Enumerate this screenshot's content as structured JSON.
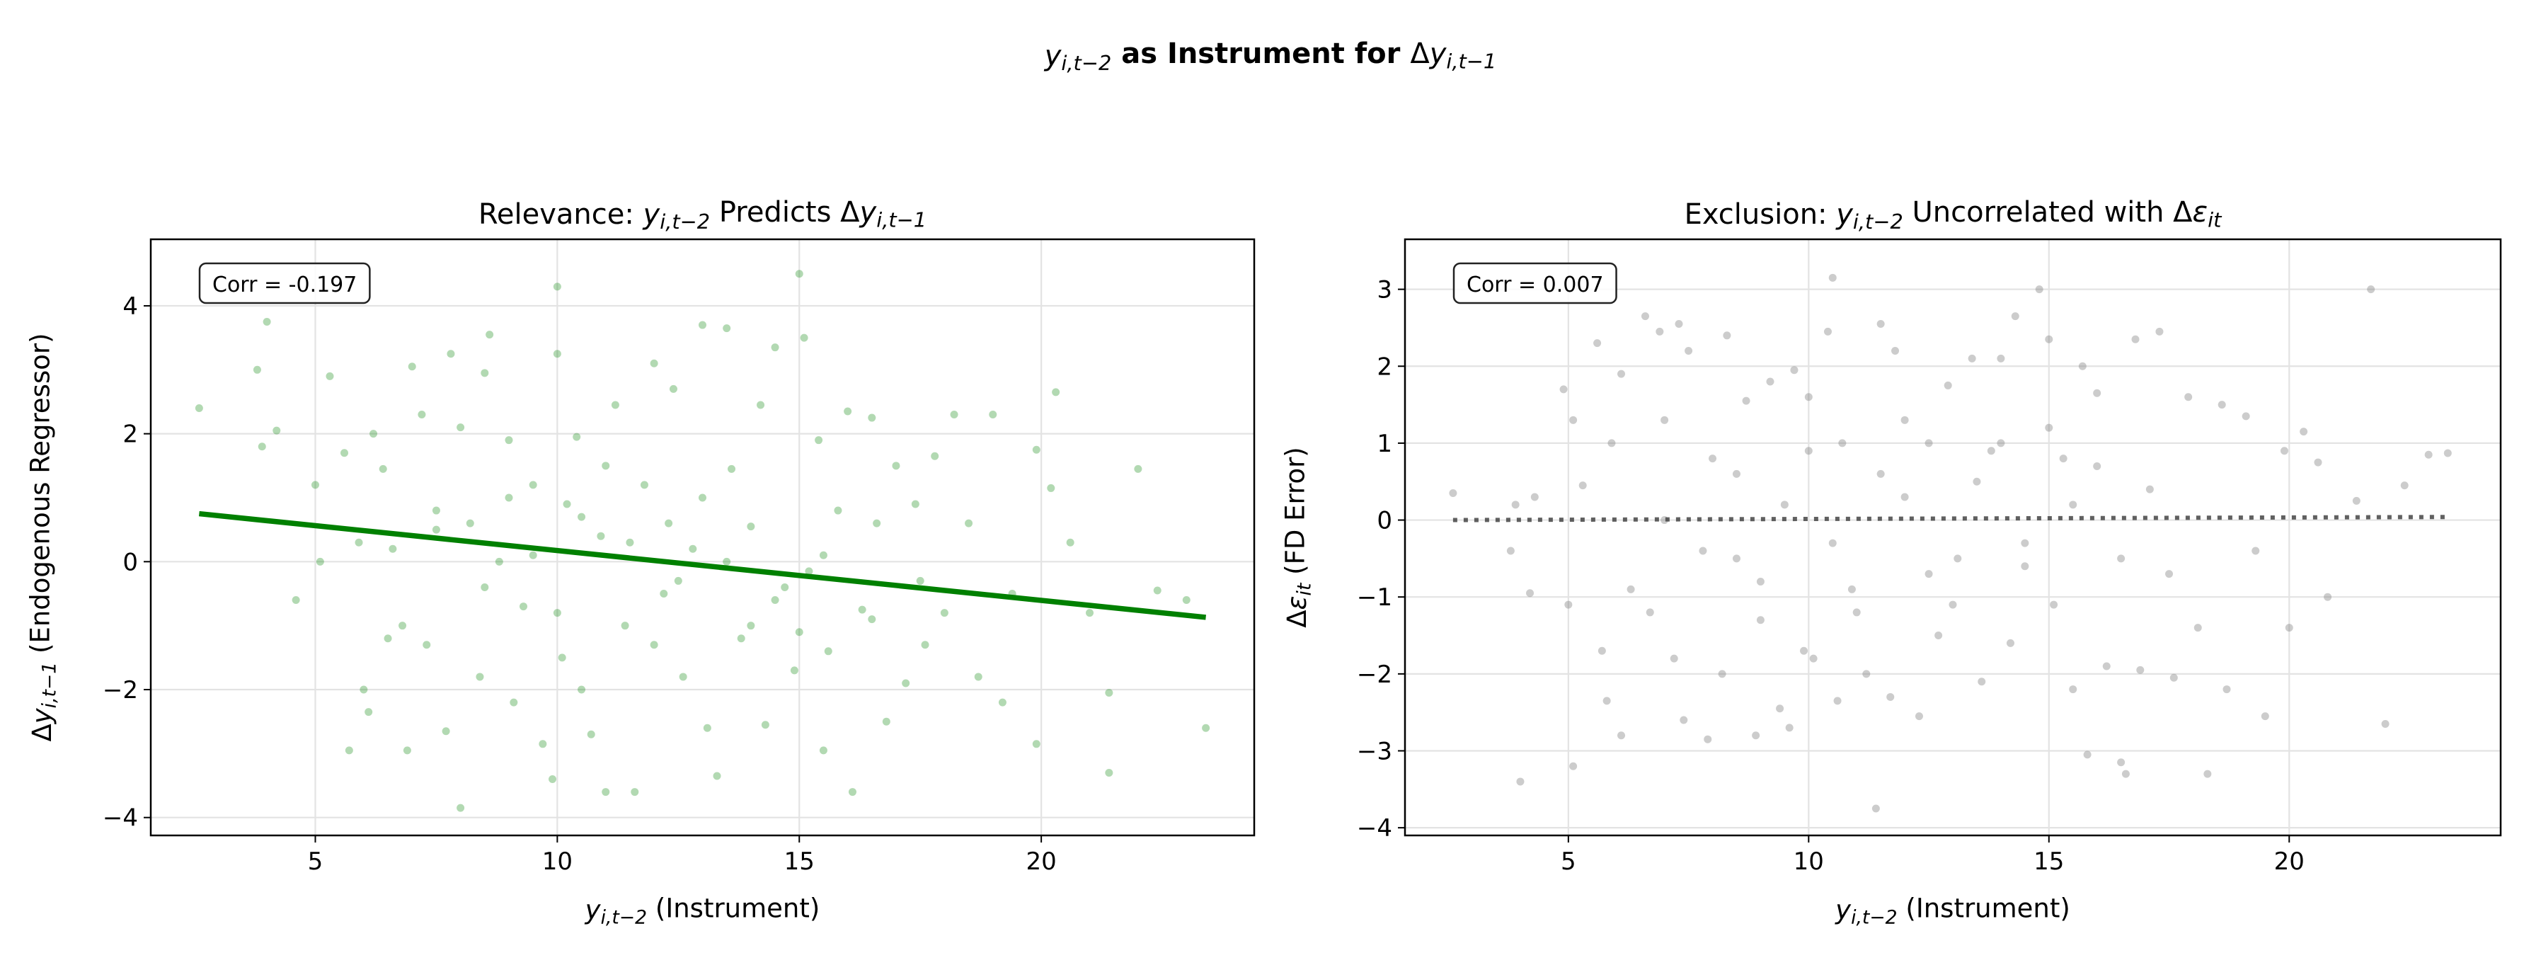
{
  "figure": {
    "suptitle": [
      {
        "t": "y",
        "s": "i"
      },
      {
        "t": "i,t−2",
        "s": "s"
      },
      {
        "t": " as Instrument for ",
        "s": "b"
      },
      {
        "t": "Δ",
        "s": "n"
      },
      {
        "t": "y",
        "s": "i"
      },
      {
        "t": "i,t−1",
        "s": "s"
      }
    ]
  },
  "chart_data": [
    {
      "type": "scatter",
      "title": [
        {
          "t": "Relevance: ",
          "s": "n"
        },
        {
          "t": "y",
          "s": "i"
        },
        {
          "t": "i,t−2",
          "s": "s"
        },
        {
          "t": " Predicts Δ",
          "s": "n"
        },
        {
          "t": "y",
          "s": "i"
        },
        {
          "t": "i,t−1",
          "s": "s"
        }
      ],
      "xlabel": [
        {
          "t": "y",
          "s": "i"
        },
        {
          "t": "i,t−2",
          "s": "s"
        },
        {
          "t": " (Instrument)",
          "s": "n"
        }
      ],
      "ylabel": [
        {
          "t": "Δ",
          "s": "n"
        },
        {
          "t": "y",
          "s": "i"
        },
        {
          "t": "i,t−1",
          "s": "s"
        },
        {
          "t": " (Endogenous Regressor)",
          "s": "n"
        }
      ],
      "annotation": "Corr = -0.197",
      "xlim": [
        1.6,
        24.4
      ],
      "ylim": [
        -4.28,
        5.04
      ],
      "xticks": [
        5,
        10,
        15,
        20
      ],
      "yticks": [
        -4,
        -2,
        0,
        2,
        4
      ],
      "ytick_labels": [
        "−4",
        "−2",
        "0",
        "2",
        "4"
      ],
      "grid": true,
      "point_color": "#008000",
      "point_alpha": 0.3,
      "fit_line": {
        "x": [
          2.6,
          23.4
        ],
        "y": [
          0.75,
          -0.87
        ],
        "color": "#008000",
        "style": "solid"
      },
      "points": [
        [
          2.6,
          2.4
        ],
        [
          3.8,
          3.0
        ],
        [
          4.0,
          3.75
        ],
        [
          3.9,
          1.8
        ],
        [
          4.2,
          2.05
        ],
        [
          4.6,
          -0.6
        ],
        [
          5.0,
          1.2
        ],
        [
          5.1,
          0.0
        ],
        [
          5.3,
          2.9
        ],
        [
          5.6,
          1.7
        ],
        [
          5.7,
          -2.95
        ],
        [
          5.9,
          0.3
        ],
        [
          6.0,
          -2.0
        ],
        [
          6.1,
          -2.35
        ],
        [
          6.2,
          2.0
        ],
        [
          6.4,
          1.45
        ],
        [
          6.6,
          0.2
        ],
        [
          6.8,
          -1.0
        ],
        [
          6.9,
          -2.95
        ],
        [
          7.0,
          3.05
        ],
        [
          7.2,
          2.3
        ],
        [
          7.3,
          -1.3
        ],
        [
          7.5,
          0.8
        ],
        [
          7.7,
          -2.65
        ],
        [
          7.8,
          3.25
        ],
        [
          8.0,
          2.1
        ],
        [
          8.0,
          -3.85
        ],
        [
          8.2,
          0.6
        ],
        [
          8.4,
          -1.8
        ],
        [
          8.5,
          2.95
        ],
        [
          8.6,
          3.55
        ],
        [
          8.8,
          0.0
        ],
        [
          9.0,
          1.9
        ],
        [
          9.1,
          -2.2
        ],
        [
          9.3,
          -0.7
        ],
        [
          9.5,
          1.2
        ],
        [
          9.7,
          -2.85
        ],
        [
          9.9,
          -3.4
        ],
        [
          10.0,
          4.3
        ],
        [
          10.0,
          3.25
        ],
        [
          10.1,
          -1.5
        ],
        [
          10.2,
          0.9
        ],
        [
          10.4,
          1.95
        ],
        [
          10.5,
          -2.0
        ],
        [
          10.7,
          -2.7
        ],
        [
          10.9,
          0.4
        ],
        [
          11.0,
          -3.6
        ],
        [
          11.2,
          2.45
        ],
        [
          11.4,
          -1.0
        ],
        [
          11.6,
          -3.6
        ],
        [
          11.8,
          1.2
        ],
        [
          12.0,
          3.1
        ],
        [
          12.2,
          -0.5
        ],
        [
          12.4,
          2.7
        ],
        [
          12.6,
          -1.8
        ],
        [
          12.8,
          0.2
        ],
        [
          13.0,
          3.7
        ],
        [
          13.1,
          -2.6
        ],
        [
          13.3,
          -3.35
        ],
        [
          13.5,
          3.65
        ],
        [
          13.6,
          1.45
        ],
        [
          13.8,
          -1.2
        ],
        [
          14.0,
          0.55
        ],
        [
          14.2,
          2.45
        ],
        [
          14.3,
          -2.55
        ],
        [
          14.5,
          3.35
        ],
        [
          14.7,
          -0.4
        ],
        [
          14.9,
          -1.7
        ],
        [
          15.0,
          4.5
        ],
        [
          15.1,
          3.5
        ],
        [
          15.2,
          -0.15
        ],
        [
          15.4,
          1.9
        ],
        [
          15.5,
          -2.95
        ],
        [
          15.6,
          -1.4
        ],
        [
          15.8,
          0.8
        ],
        [
          16.0,
          2.35
        ],
        [
          16.1,
          -3.6
        ],
        [
          16.3,
          -0.75
        ],
        [
          16.5,
          2.25
        ],
        [
          16.6,
          0.6
        ],
        [
          16.8,
          -2.5
        ],
        [
          17.0,
          1.5
        ],
        [
          17.2,
          -1.9
        ],
        [
          17.4,
          0.9
        ],
        [
          17.6,
          -1.3
        ],
        [
          17.8,
          1.65
        ],
        [
          18.0,
          -0.8
        ],
        [
          18.2,
          2.3
        ],
        [
          18.5,
          0.6
        ],
        [
          18.7,
          -1.8
        ],
        [
          19.0,
          2.3
        ],
        [
          19.2,
          -2.2
        ],
        [
          19.4,
          -0.5
        ],
        [
          19.9,
          1.75
        ],
        [
          19.9,
          -2.85
        ],
        [
          20.2,
          1.15
        ],
        [
          20.3,
          2.65
        ],
        [
          20.6,
          0.3
        ],
        [
          21.0,
          -0.8
        ],
        [
          21.4,
          -3.3
        ],
        [
          21.4,
          -2.05
        ],
        [
          22.0,
          1.45
        ],
        [
          22.4,
          -0.45
        ],
        [
          23.0,
          -0.6
        ],
        [
          23.4,
          -2.6
        ],
        [
          9.5,
          0.1
        ],
        [
          10.5,
          0.7
        ],
        [
          11.5,
          0.3
        ],
        [
          12.5,
          -0.3
        ],
        [
          13.5,
          0.0
        ],
        [
          14.5,
          -0.6
        ],
        [
          15.5,
          0.1
        ],
        [
          8.5,
          -0.4
        ],
        [
          7.5,
          0.5
        ],
        [
          16.5,
          -0.9
        ],
        [
          12.0,
          -1.3
        ],
        [
          11.0,
          1.5
        ],
        [
          14.0,
          -1.0
        ],
        [
          9.0,
          1.0
        ],
        [
          10.0,
          -0.8
        ],
        [
          13.0,
          1.0
        ],
        [
          15.0,
          -1.1
        ],
        [
          6.5,
          -1.2
        ],
        [
          17.5,
          -0.3
        ],
        [
          12.3,
          0.6
        ]
      ]
    },
    {
      "type": "scatter",
      "title": [
        {
          "t": "Exclusion: ",
          "s": "n"
        },
        {
          "t": "y",
          "s": "i"
        },
        {
          "t": "i,t−2",
          "s": "s"
        },
        {
          "t": " Uncorrelated with Δ",
          "s": "n"
        },
        {
          "t": "ε",
          "s": "i"
        },
        {
          "t": "it",
          "s": "s"
        }
      ],
      "xlabel": [
        {
          "t": "y",
          "s": "i"
        },
        {
          "t": "i,t−2",
          "s": "s"
        },
        {
          "t": " (Instrument)",
          "s": "n"
        }
      ],
      "ylabel": [
        {
          "t": "Δ",
          "s": "n"
        },
        {
          "t": "ε",
          "s": "i"
        },
        {
          "t": "it",
          "s": "s"
        },
        {
          "t": " (FD Error)",
          "s": "n"
        }
      ],
      "annotation": "Corr = 0.007",
      "xlim": [
        1.6,
        24.4
      ],
      "ylim": [
        -4.1,
        3.65
      ],
      "xticks": [
        5,
        10,
        15,
        20
      ],
      "yticks": [
        -4,
        -3,
        -2,
        -1,
        0,
        1,
        2,
        3
      ],
      "ytick_labels": [
        "−4",
        "−3",
        "−2",
        "−1",
        "0",
        "1",
        "2",
        "3"
      ],
      "grid": true,
      "point_color": "#808080",
      "point_alpha": 0.4,
      "fit_line": {
        "x": [
          2.6,
          23.3
        ],
        "y": [
          0.0,
          0.04
        ],
        "color": "#444444",
        "style": "dotted"
      },
      "points": [
        [
          2.6,
          0.35
        ],
        [
          3.8,
          -0.4
        ],
        [
          3.9,
          0.2
        ],
        [
          4.0,
          -3.4
        ],
        [
          4.2,
          -0.95
        ],
        [
          4.3,
          0.3
        ],
        [
          4.9,
          1.7
        ],
        [
          5.0,
          -1.1
        ],
        [
          5.1,
          1.3
        ],
        [
          5.1,
          -3.2
        ],
        [
          5.3,
          0.45
        ],
        [
          5.6,
          2.3
        ],
        [
          5.7,
          -1.7
        ],
        [
          5.8,
          -2.35
        ],
        [
          5.9,
          1.0
        ],
        [
          6.1,
          -2.8
        ],
        [
          6.1,
          1.9
        ],
        [
          6.3,
          -0.9
        ],
        [
          6.6,
          2.65
        ],
        [
          6.7,
          -1.2
        ],
        [
          6.9,
          2.45
        ],
        [
          7.0,
          1.3
        ],
        [
          7.2,
          -1.8
        ],
        [
          7.3,
          2.55
        ],
        [
          7.4,
          -2.6
        ],
        [
          7.5,
          2.2
        ],
        [
          7.8,
          -0.4
        ],
        [
          7.9,
          -2.85
        ],
        [
          8.0,
          0.8
        ],
        [
          8.2,
          -2.0
        ],
        [
          8.3,
          2.4
        ],
        [
          8.5,
          -0.5
        ],
        [
          8.7,
          1.55
        ],
        [
          8.9,
          -2.8
        ],
        [
          9.0,
          -1.3
        ],
        [
          9.2,
          1.8
        ],
        [
          9.4,
          -2.45
        ],
        [
          9.6,
          -2.7
        ],
        [
          9.7,
          1.95
        ],
        [
          9.9,
          -1.7
        ],
        [
          10.0,
          1.6
        ],
        [
          10.1,
          -1.8
        ],
        [
          10.4,
          2.45
        ],
        [
          10.5,
          3.15
        ],
        [
          10.6,
          -2.35
        ],
        [
          10.7,
          1.0
        ],
        [
          10.9,
          -0.9
        ],
        [
          11.2,
          -2.0
        ],
        [
          11.4,
          -3.75
        ],
        [
          11.5,
          2.55
        ],
        [
          11.7,
          -2.3
        ],
        [
          11.8,
          2.2
        ],
        [
          12.0,
          0.3
        ],
        [
          12.3,
          -2.55
        ],
        [
          12.5,
          1.0
        ],
        [
          12.7,
          -1.5
        ],
        [
          12.9,
          1.75
        ],
        [
          13.1,
          -0.5
        ],
        [
          13.4,
          2.1
        ],
        [
          13.6,
          -2.1
        ],
        [
          13.8,
          0.9
        ],
        [
          14.0,
          2.1
        ],
        [
          14.2,
          -1.6
        ],
        [
          14.3,
          2.65
        ],
        [
          14.5,
          -0.3
        ],
        [
          14.8,
          3.0
        ],
        [
          15.0,
          2.35
        ],
        [
          15.1,
          -1.1
        ],
        [
          15.3,
          0.8
        ],
        [
          15.5,
          -2.2
        ],
        [
          15.7,
          2.0
        ],
        [
          15.8,
          -3.05
        ],
        [
          16.0,
          1.65
        ],
        [
          16.2,
          -1.9
        ],
        [
          16.5,
          -3.15
        ],
        [
          16.6,
          -3.3
        ],
        [
          16.8,
          2.35
        ],
        [
          16.9,
          -1.95
        ],
        [
          17.1,
          0.4
        ],
        [
          17.3,
          2.45
        ],
        [
          17.6,
          -2.05
        ],
        [
          17.9,
          1.6
        ],
        [
          18.1,
          -1.4
        ],
        [
          18.3,
          -3.3
        ],
        [
          18.6,
          1.5
        ],
        [
          18.7,
          -2.2
        ],
        [
          19.1,
          1.35
        ],
        [
          19.3,
          -0.4
        ],
        [
          19.5,
          -2.55
        ],
        [
          19.9,
          0.9
        ],
        [
          20.0,
          -1.4
        ],
        [
          20.3,
          1.15
        ],
        [
          20.6,
          0.75
        ],
        [
          20.8,
          -1.0
        ],
        [
          21.4,
          0.25
        ],
        [
          21.7,
          3.0
        ],
        [
          22.0,
          -2.65
        ],
        [
          22.4,
          0.45
        ],
        [
          22.9,
          0.85
        ],
        [
          23.3,
          0.87
        ],
        [
          9.5,
          0.2
        ],
        [
          10.5,
          -0.3
        ],
        [
          11.5,
          0.6
        ],
        [
          12.5,
          -0.7
        ],
        [
          13.5,
          0.5
        ],
        [
          14.5,
          -0.6
        ],
        [
          15.5,
          0.2
        ],
        [
          8.5,
          0.6
        ],
        [
          16.5,
          -0.5
        ],
        [
          12.0,
          1.3
        ],
        [
          11.0,
          -1.2
        ],
        [
          14.0,
          1.0
        ],
        [
          9.0,
          -0.8
        ],
        [
          13.0,
          -1.1
        ],
        [
          15.0,
          1.2
        ],
        [
          7.0,
          0.0
        ],
        [
          17.5,
          -0.7
        ],
        [
          10.0,
          0.9
        ],
        [
          16.0,
          0.7
        ]
      ]
    }
  ]
}
